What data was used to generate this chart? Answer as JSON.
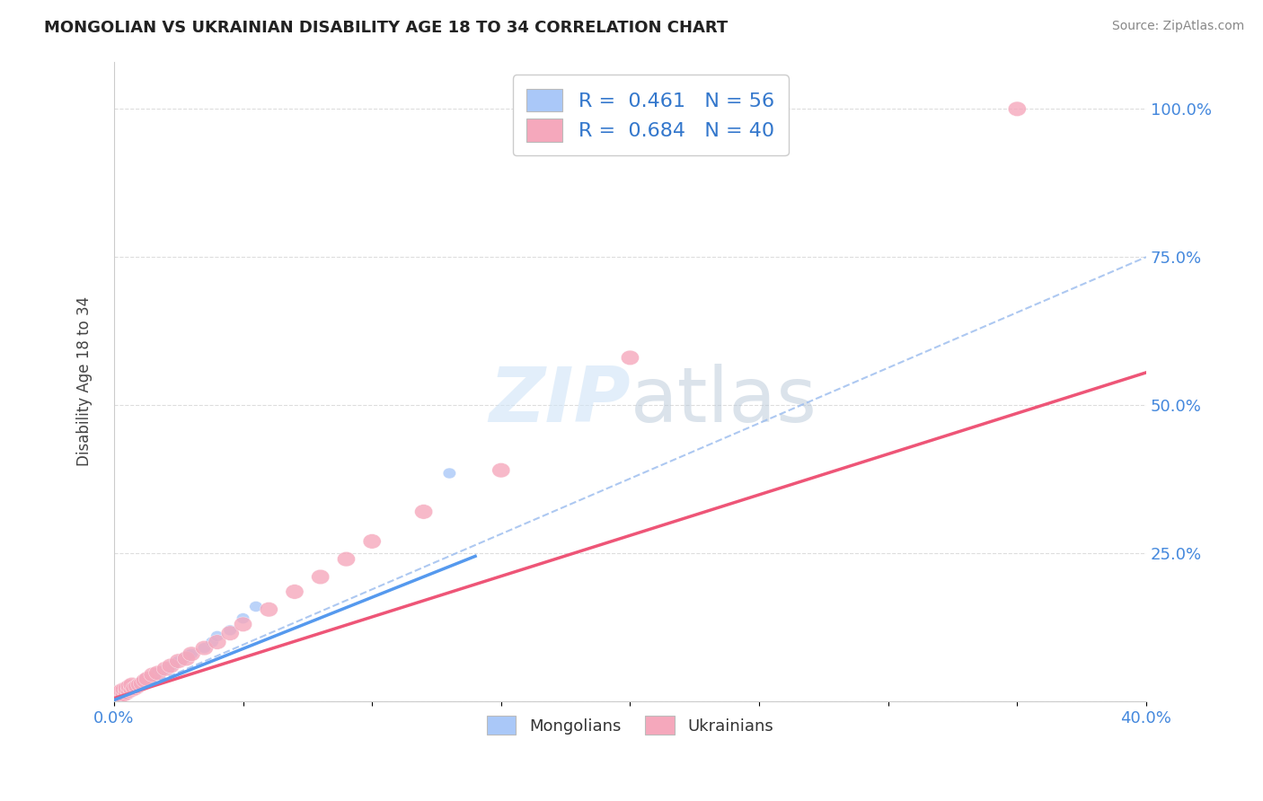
{
  "title": "MONGOLIAN VS UKRAINIAN DISABILITY AGE 18 TO 34 CORRELATION CHART",
  "source_text": "Source: ZipAtlas.com",
  "ylabel": "Disability Age 18 to 34",
  "xlim": [
    0.0,
    0.4
  ],
  "ylim": [
    0.0,
    1.08
  ],
  "mongolian_color": "#aac8f8",
  "ukrainian_color": "#f5a8bc",
  "trend_mongolian_color": "#5599ee",
  "trend_ukrainian_color": "#ee5577",
  "trend_dashed_color": "#99bbee",
  "background_color": "#ffffff",
  "watermark_color": "#d0e4f7",
  "mongolian_scatter_x": [
    0.001,
    0.001,
    0.001,
    0.002,
    0.002,
    0.002,
    0.002,
    0.003,
    0.003,
    0.003,
    0.003,
    0.004,
    0.004,
    0.004,
    0.005,
    0.005,
    0.005,
    0.006,
    0.006,
    0.007,
    0.007,
    0.008,
    0.008,
    0.009,
    0.009,
    0.01,
    0.01,
    0.011,
    0.011,
    0.012,
    0.012,
    0.013,
    0.014,
    0.015,
    0.016,
    0.017,
    0.018,
    0.019,
    0.02,
    0.021,
    0.022,
    0.023,
    0.024,
    0.025,
    0.026,
    0.027,
    0.028,
    0.029,
    0.03,
    0.035,
    0.038,
    0.04,
    0.045,
    0.05,
    0.055,
    0.13
  ],
  "mongolian_scatter_y": [
    0.005,
    0.008,
    0.01,
    0.008,
    0.01,
    0.012,
    0.015,
    0.01,
    0.012,
    0.015,
    0.018,
    0.012,
    0.015,
    0.02,
    0.015,
    0.018,
    0.022,
    0.018,
    0.022,
    0.02,
    0.025,
    0.022,
    0.028,
    0.025,
    0.03,
    0.025,
    0.032,
    0.028,
    0.035,
    0.03,
    0.038,
    0.035,
    0.04,
    0.042,
    0.045,
    0.048,
    0.05,
    0.052,
    0.055,
    0.058,
    0.06,
    0.062,
    0.065,
    0.068,
    0.07,
    0.072,
    0.075,
    0.078,
    0.08,
    0.09,
    0.1,
    0.11,
    0.12,
    0.14,
    0.16,
    0.385
  ],
  "ukrainian_scatter_x": [
    0.001,
    0.001,
    0.002,
    0.002,
    0.003,
    0.003,
    0.004,
    0.004,
    0.005,
    0.005,
    0.006,
    0.006,
    0.007,
    0.007,
    0.008,
    0.009,
    0.01,
    0.011,
    0.012,
    0.013,
    0.015,
    0.017,
    0.02,
    0.022,
    0.025,
    0.028,
    0.03,
    0.035,
    0.04,
    0.045,
    0.05,
    0.06,
    0.07,
    0.08,
    0.09,
    0.1,
    0.12,
    0.15,
    0.2,
    0.35
  ],
  "ukrainian_scatter_y": [
    0.005,
    0.01,
    0.008,
    0.015,
    0.01,
    0.018,
    0.012,
    0.02,
    0.015,
    0.022,
    0.018,
    0.025,
    0.02,
    0.028,
    0.022,
    0.025,
    0.028,
    0.03,
    0.035,
    0.038,
    0.045,
    0.048,
    0.055,
    0.06,
    0.068,
    0.072,
    0.08,
    0.09,
    0.1,
    0.115,
    0.13,
    0.155,
    0.185,
    0.21,
    0.24,
    0.27,
    0.32,
    0.39,
    0.58,
    1.0
  ],
  "mon_trend_x0": 0.0,
  "mon_trend_y0": 0.002,
  "mon_trend_x1": 0.14,
  "mon_trend_y1": 0.245,
  "ukr_trend_x0": 0.0,
  "ukr_trend_y0": 0.005,
  "ukr_trend_x1": 0.4,
  "ukr_trend_y1": 0.555,
  "dash_trend_x0": 0.0,
  "dash_trend_y0": 0.002,
  "dash_trend_x1": 0.4,
  "dash_trend_y1": 0.75
}
